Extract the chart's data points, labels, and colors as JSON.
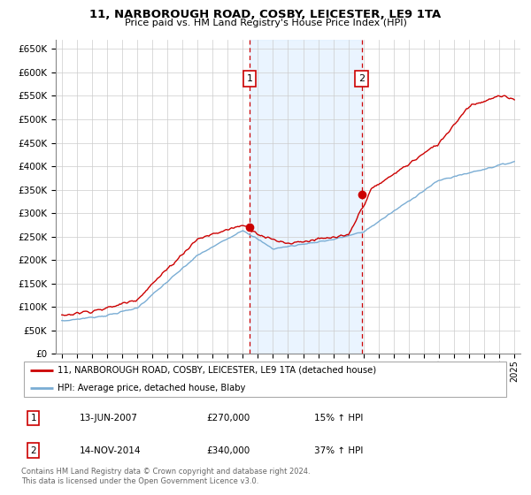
{
  "title": "11, NARBOROUGH ROAD, COSBY, LEICESTER, LE9 1TA",
  "subtitle": "Price paid vs. HM Land Registry's House Price Index (HPI)",
  "legend_line1": "11, NARBOROUGH ROAD, COSBY, LEICESTER, LE9 1TA (detached house)",
  "legend_line2": "HPI: Average price, detached house, Blaby",
  "sale1_date": "13-JUN-2007",
  "sale1_price": 270000,
  "sale1_label": "£270,000",
  "sale1_pct": "15% ↑ HPI",
  "sale2_date": "14-NOV-2014",
  "sale2_price": 340000,
  "sale2_label": "£340,000",
  "sale2_pct": "37% ↑ HPI",
  "footer": "Contains HM Land Registry data © Crown copyright and database right 2024.\nThis data is licensed under the Open Government Licence v3.0.",
  "hpi_color": "#7aadd4",
  "price_color": "#cc0000",
  "sale_vline_color": "#cc0000",
  "shade_color": "#ddeeff",
  "ylim": [
    0,
    670000
  ],
  "yticks": [
    0,
    50000,
    100000,
    150000,
    200000,
    250000,
    300000,
    350000,
    400000,
    450000,
    500000,
    550000,
    600000,
    650000
  ],
  "xlim_start": 1994.6,
  "xlim_end": 2025.4,
  "sale1_x": 2007.45,
  "sale2_x": 2014.87
}
